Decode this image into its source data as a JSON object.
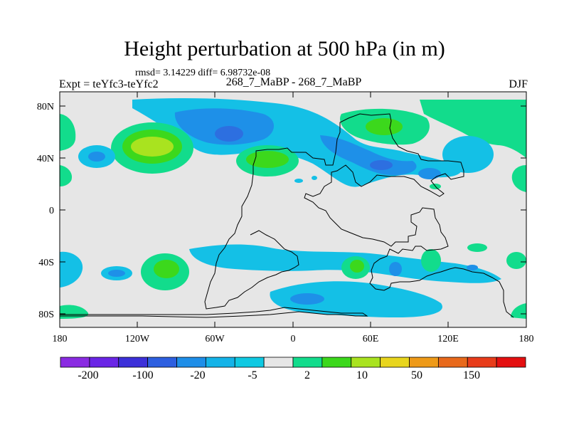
{
  "title": "Height perturbation at 500 hPa (in m)",
  "stats": "rmsd= 3.14229 diff= 6.98732e-08",
  "left_label": "Expt = teYfc3-teYfc2",
  "center_label": "268_7_MaBP - 268_7_MaBP",
  "right_label": "DJF",
  "y_ticks": [
    "80N",
    "40N",
    "0",
    "40S",
    "80S"
  ],
  "x_ticks": [
    "180",
    "120W",
    "60W",
    "0",
    "60E",
    "120E",
    "180"
  ],
  "colorbar": {
    "colors": [
      "#8a2be2",
      "#6a25e6",
      "#3c30d9",
      "#2d5fe0",
      "#1e8ee8",
      "#14b3e8",
      "#0fc9e2",
      "#e6e6e6",
      "#12dc8c",
      "#3cd81c",
      "#a9e31f",
      "#e8d51d",
      "#ee9a18",
      "#e8691b",
      "#e83c1a",
      "#e40f10"
    ],
    "labels": [
      "-200",
      "-100",
      "-20",
      "-5",
      "2",
      "10",
      "50",
      "150"
    ]
  },
  "colors": {
    "background": "#e6e6e6",
    "light_blue": "#14c0e6",
    "mid_blue": "#1e90e8",
    "dark_blue": "#2d6fe0",
    "green": "#12dc8c",
    "bright_green": "#3cd81c",
    "yellow_green": "#a9e31f"
  }
}
